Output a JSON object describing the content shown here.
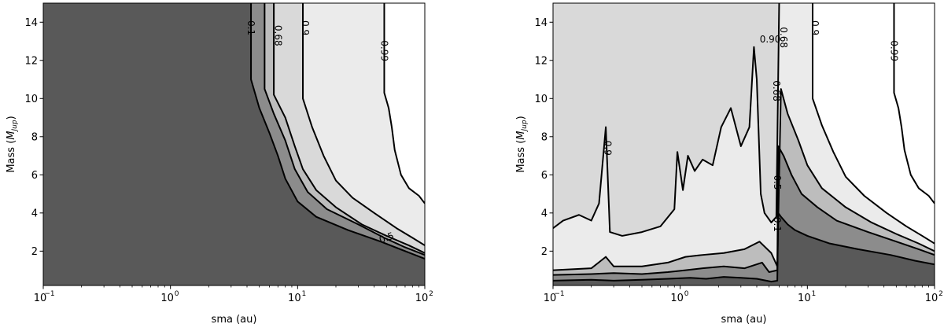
{
  "chart_data": [
    {
      "type": "contour",
      "xlabel": "sma (au)",
      "ylabel": "Mass (M_Jup)",
      "xscale": "log",
      "xlim": [
        0.1,
        100
      ],
      "ylim": [
        0.2,
        15
      ],
      "x_ticks": [
        0.1,
        1,
        10,
        100
      ],
      "x_tick_labels": [
        "10",
        "10",
        "10",
        "10"
      ],
      "x_tick_exponents": [
        "−1",
        "0",
        "1",
        "2"
      ],
      "y_ticks": [
        2,
        4,
        6,
        8,
        10,
        12,
        14
      ],
      "y_tick_labels": [
        "2",
        "4",
        "6",
        "8",
        "10",
        "12",
        "14"
      ],
      "fill_colors": [
        "#595959",
        "#8c8c8c",
        "#bdbdbd",
        "#d9d9d9",
        "#ebebeb",
        "#ffffff"
      ],
      "levels": [
        {
          "value": 0.1,
          "label": "0.1",
          "points": [
            [
              4.3,
              15
            ],
            [
              4.3,
              11
            ],
            [
              5,
              9.5
            ],
            [
              6,
              8.2
            ],
            [
              7,
              7
            ],
            [
              8,
              5.8
            ],
            [
              10,
              4.6
            ],
            [
              14,
              3.8
            ],
            [
              25,
              3.1
            ],
            [
              45,
              2.5
            ],
            [
              70,
              2
            ],
            [
              100,
              1.6
            ]
          ]
        },
        {
          "value": 0.5,
          "label": "0.5",
          "points": [
            [
              5.5,
              15
            ],
            [
              5.5,
              10.5
            ],
            [
              6.5,
              9.2
            ],
            [
              8,
              7.8
            ],
            [
              9.5,
              6.3
            ],
            [
              12,
              5.1
            ],
            [
              17,
              4.2
            ],
            [
              30,
              3.4
            ],
            [
              48,
              2.7
            ],
            [
              70,
              2.2
            ],
            [
              100,
              1.8
            ]
          ]
        },
        {
          "value": 0.68,
          "label": "0.68",
          "points": [
            [
              6.5,
              15
            ],
            [
              6.5,
              10.2
            ],
            [
              8,
              9
            ],
            [
              9.5,
              7.5
            ],
            [
              11,
              6.3
            ],
            [
              14,
              5.2
            ],
            [
              20,
              4.3
            ],
            [
              32,
              3.4
            ],
            [
              50,
              2.8
            ],
            [
              75,
              2.3
            ],
            [
              100,
              1.9
            ]
          ]
        },
        {
          "value": 0.9,
          "label": "0.9",
          "points": [
            [
              11,
              15
            ],
            [
              11,
              10
            ],
            [
              13,
              8.5
            ],
            [
              16,
              7
            ],
            [
              20,
              5.7
            ],
            [
              27,
              4.8
            ],
            [
              40,
              4
            ],
            [
              60,
              3.2
            ],
            [
              80,
              2.7
            ],
            [
              100,
              2.3
            ]
          ]
        },
        {
          "value": 0.99,
          "label": "0.99",
          "points": [
            [
              48,
              15
            ],
            [
              48,
              10.3
            ],
            [
              52,
              9.5
            ],
            [
              55,
              8.5
            ],
            [
              58,
              7.3
            ],
            [
              65,
              6
            ],
            [
              75,
              5.3
            ],
            [
              90,
              4.9
            ],
            [
              100,
              4.5
            ]
          ]
        }
      ],
      "inline_labels": [
        {
          "text": "0.1",
          "x": 4.3,
          "y": 13.7,
          "rotate": 90
        },
        {
          "text": "0.68",
          "x": 7.0,
          "y": 13.3,
          "rotate": 90
        },
        {
          "text": "0.9",
          "x": 11.5,
          "y": 13.7,
          "rotate": 90
        },
        {
          "text": "0.99",
          "x": 48,
          "y": 12.5,
          "rotate": 90
        },
        {
          "text": "0.5",
          "x": 50,
          "y": 2.7,
          "rotate": -20
        }
      ]
    },
    {
      "type": "contour",
      "xlabel": "sma (au)",
      "ylabel": "Mass (M_Jup)",
      "xscale": "log",
      "xlim": [
        0.1,
        100
      ],
      "ylim": [
        0.2,
        15
      ],
      "x_ticks": [
        0.1,
        1,
        10,
        100
      ],
      "x_tick_labels": [
        "10",
        "10",
        "10",
        "10"
      ],
      "x_tick_exponents": [
        "−1",
        "0",
        "1",
        "2"
      ],
      "y_ticks": [
        2,
        4,
        6,
        8,
        10,
        12,
        14
      ],
      "y_tick_labels": [
        "2",
        "4",
        "6",
        "8",
        "10",
        "12",
        "14"
      ],
      "fill_colors": [
        "#595959",
        "#8c8c8c",
        "#bdbdbd",
        "#d9d9d9",
        "#ebebeb",
        "#ffffff"
      ],
      "levels": [
        {
          "value": 0.1,
          "label": "0.1",
          "points": [
            [
              0.1,
              0.45
            ],
            [
              0.2,
              0.5
            ],
            [
              0.3,
              0.45
            ],
            [
              0.5,
              0.5
            ],
            [
              0.8,
              0.55
            ],
            [
              1.2,
              0.6
            ],
            [
              1.6,
              0.55
            ],
            [
              2.2,
              0.65
            ],
            [
              3,
              0.6
            ],
            [
              4,
              0.55
            ],
            [
              5.2,
              0.4
            ],
            [
              5.8,
              0.45
            ],
            [
              5.9,
              4
            ],
            [
              6.2,
              3.8
            ],
            [
              7,
              3.4
            ],
            [
              8,
              3.1
            ],
            [
              10,
              2.8
            ],
            [
              15,
              2.4
            ],
            [
              25,
              2.1
            ],
            [
              45,
              1.8
            ],
            [
              70,
              1.5
            ],
            [
              100,
              1.3
            ]
          ]
        },
        {
          "value": 0.5,
          "label": "0.5",
          "points": [
            [
              0.1,
              0.75
            ],
            [
              0.2,
              0.8
            ],
            [
              0.3,
              0.85
            ],
            [
              0.5,
              0.8
            ],
            [
              0.8,
              0.9
            ],
            [
              1.1,
              1.0
            ],
            [
              1.5,
              1.1
            ],
            [
              2.2,
              1.2
            ],
            [
              3.2,
              1.1
            ],
            [
              4.4,
              1.4
            ],
            [
              5,
              0.9
            ],
            [
              5.8,
              1.0
            ],
            [
              5.9,
              7.5
            ],
            [
              6.5,
              7
            ],
            [
              7.5,
              6
            ],
            [
              9,
              5
            ],
            [
              12,
              4.3
            ],
            [
              17,
              3.6
            ],
            [
              30,
              3
            ],
            [
              50,
              2.5
            ],
            [
              75,
              2.1
            ],
            [
              100,
              1.8
            ]
          ]
        },
        {
          "value": 0.68,
          "label": "0.68",
          "points": [
            [
              0.1,
              1.0
            ],
            [
              0.2,
              1.1
            ],
            [
              0.26,
              1.7
            ],
            [
              0.3,
              1.2
            ],
            [
              0.5,
              1.2
            ],
            [
              0.8,
              1.4
            ],
            [
              1.1,
              1.7
            ],
            [
              1.5,
              1.8
            ],
            [
              2.2,
              1.9
            ],
            [
              3.2,
              2.1
            ],
            [
              4.2,
              2.5
            ],
            [
              5.2,
              1.9
            ],
            [
              5.8,
              1.2
            ],
            [
              6.2,
              10.5
            ],
            [
              7,
              9.2
            ],
            [
              8.5,
              7.8
            ],
            [
              10,
              6.5
            ],
            [
              13,
              5.3
            ],
            [
              20,
              4.3
            ],
            [
              32,
              3.5
            ],
            [
              50,
              2.9
            ],
            [
              75,
              2.4
            ],
            [
              100,
              2.0
            ]
          ]
        },
        {
          "value": 0.9,
          "label": "0.9",
          "points": [
            [
              0.1,
              3.2
            ],
            [
              0.12,
              3.6
            ],
            [
              0.16,
              3.9
            ],
            [
              0.2,
              3.6
            ],
            [
              0.23,
              4.5
            ],
            [
              0.26,
              8.5
            ],
            [
              0.28,
              3.0
            ],
            [
              0.35,
              2.8
            ],
            [
              0.5,
              3.0
            ],
            [
              0.7,
              3.3
            ],
            [
              0.9,
              4.2
            ],
            [
              0.95,
              7.2
            ],
            [
              1.05,
              5.2
            ],
            [
              1.15,
              7.0
            ],
            [
              1.3,
              6.2
            ],
            [
              1.5,
              6.8
            ],
            [
              1.8,
              6.5
            ],
            [
              2.1,
              8.5
            ],
            [
              2.5,
              9.5
            ],
            [
              3.0,
              7.5
            ],
            [
              3.5,
              8.5
            ],
            [
              3.8,
              12.7
            ],
            [
              4.0,
              11.0
            ],
            [
              4.3,
              5.0
            ],
            [
              4.6,
              4.0
            ],
            [
              5.2,
              3.5
            ],
            [
              5.7,
              3.8
            ],
            [
              6.0,
              15
            ]
          ]
        },
        {
          "value": 0.9,
          "label": "0.9",
          "points": [
            [
              11,
              15
            ],
            [
              11,
              10
            ],
            [
              13,
              8.6
            ],
            [
              16,
              7.2
            ],
            [
              20,
              5.9
            ],
            [
              28,
              4.9
            ],
            [
              42,
              4.0
            ],
            [
              60,
              3.3
            ],
            [
              80,
              2.8
            ],
            [
              100,
              2.4
            ]
          ]
        },
        {
          "value": 0.99,
          "label": "0.99",
          "points": [
            [
              48,
              15
            ],
            [
              48,
              10.3
            ],
            [
              52,
              9.5
            ],
            [
              55,
              8.5
            ],
            [
              58,
              7.3
            ],
            [
              65,
              6
            ],
            [
              75,
              5.3
            ],
            [
              90,
              4.9
            ],
            [
              100,
              4.5
            ]
          ]
        }
      ],
      "inline_labels": [
        {
          "text": "0.9",
          "x": 0.27,
          "y": 7.4,
          "rotate": 90
        },
        {
          "text": "0.90",
          "x": 5.1,
          "y": 13.1,
          "rotate": 0
        },
        {
          "text": "0.68",
          "x": 6.5,
          "y": 13.2,
          "rotate": 90
        },
        {
          "text": "0.9",
          "x": 11.5,
          "y": 13.7,
          "rotate": 90
        },
        {
          "text": "0.99",
          "x": 48,
          "y": 12.5,
          "rotate": 90
        },
        {
          "text": "0.68",
          "x": 5.7,
          "y": 10.4,
          "rotate": 90
        },
        {
          "text": "0.5",
          "x": 5.8,
          "y": 5.6,
          "rotate": 90
        },
        {
          "text": "0.1",
          "x": 5.8,
          "y": 3.4,
          "rotate": 90
        }
      ]
    }
  ]
}
